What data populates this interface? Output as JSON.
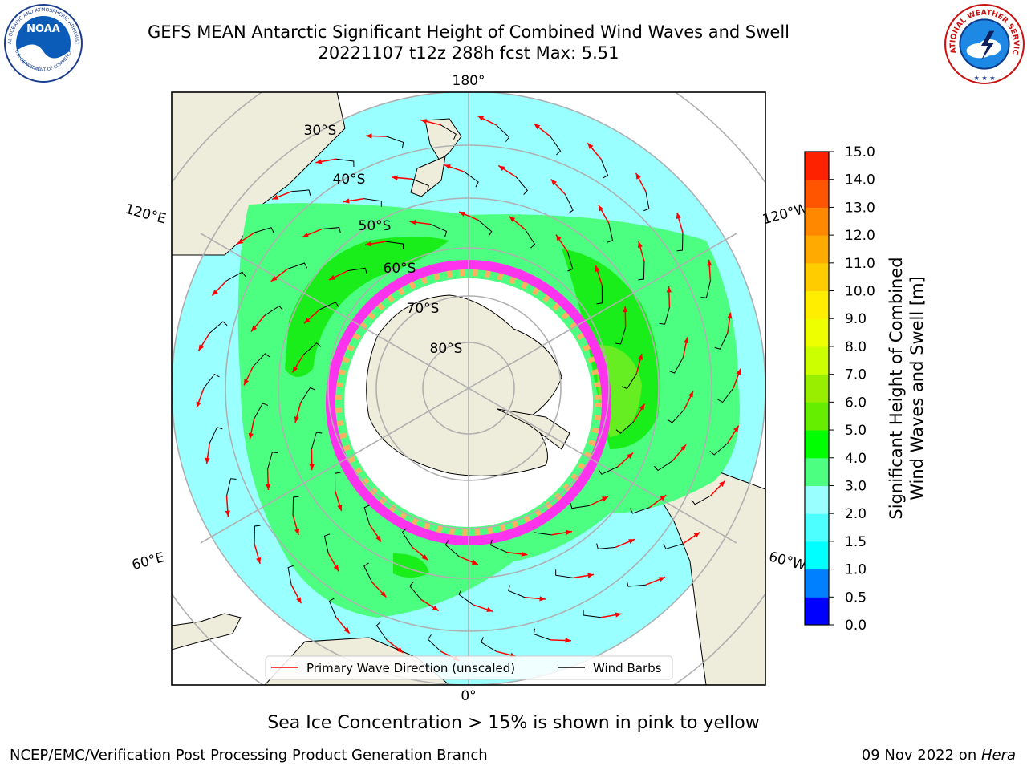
{
  "header": {
    "title_line1": "GEFS MEAN Antarctic Significant Height of Combined Wind Waves and Swell",
    "title_line2": "20221107 t12z 288h fcst   Max: 5.51"
  },
  "logos": {
    "left": {
      "icon": "noaa-logo-icon",
      "ring_text": "NATIONAL OCEANIC AND ATMOSPHERIC ADMINISTRATION",
      "bottom_text": "U.S. DEPARTMENT OF COMMERCE",
      "center_text": "NOAA"
    },
    "right": {
      "icon": "nws-logo-icon",
      "ring_text": "NATIONAL WEATHER SERVICE"
    }
  },
  "map": {
    "projection": "south-polar-stereographic",
    "longitude_labels": {
      "top": "180°",
      "bottom": "0°",
      "left_upper": "120°E",
      "left_lower": "60°E",
      "right_upper": "120°W",
      "right_lower": "60°W"
    },
    "latitude_labels": [
      "30°S",
      "40°S",
      "50°S",
      "60°S",
      "70°S",
      "80°S"
    ],
    "colors": {
      "land": "#eeecdb",
      "ocean_no_data": "#ffffff",
      "wave_2_3": "#99ffff",
      "wave_3_4": "#4dff80",
      "wave_4_5": "#1aee1a",
      "wave_5_6": "#66ee22",
      "ice_edge": "#ff33ee",
      "ice_inner": "#ffb060",
      "wave_direction": "#ff0000",
      "wind_barbs": "#000000",
      "graticule": "#b0b0b0"
    },
    "legend": {
      "wave_direction_label": "Primary Wave Direction (unscaled)",
      "wind_barbs_label": "Wind Barbs"
    }
  },
  "colorbar": {
    "label_line1": "Significant Height of Combined",
    "label_line2": "Wind Waves and Swell [m]",
    "ticks": [
      "0.0",
      "0.5",
      "1.0",
      "1.5",
      "2.0",
      "3.0",
      "4.0",
      "5.0",
      "6.0",
      "7.0",
      "8.0",
      "9.0",
      "10.0",
      "11.0",
      "12.0",
      "13.0",
      "14.0",
      "15.0"
    ],
    "colors": [
      "#0000ff",
      "#0080ff",
      "#00ffff",
      "#4dffff",
      "#99ffff",
      "#4dff80",
      "#00ff00",
      "#66ee00",
      "#99ee00",
      "#ccff00",
      "#eeff00",
      "#ffee00",
      "#ffcc00",
      "#ffaa00",
      "#ff8800",
      "#ff5500",
      "#ff2200",
      "#ff0000"
    ]
  },
  "footer": {
    "note": "Sea Ice Concentration > 15% is shown in pink to yellow",
    "credit": "NCEP/EMC/Verification Post Processing Product Generation Branch",
    "date": "09 Nov 2022 on ",
    "host": "Hera"
  }
}
